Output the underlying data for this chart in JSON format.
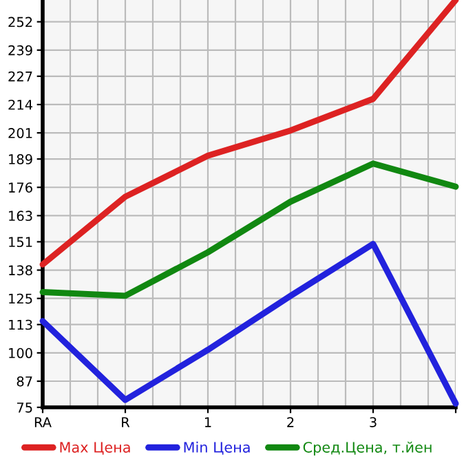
{
  "chart_data": {
    "type": "line",
    "categories": [
      "RA",
      "R",
      "1",
      "2",
      "3",
      null
    ],
    "series": [
      {
        "name": "Max Цена",
        "color": "#dd2222",
        "values": [
          140.6,
          171.7,
          190.5,
          202.1,
          216.6,
          262
        ]
      },
      {
        "name": "Min Цена",
        "color": "#2222dd",
        "values": [
          114.6,
          78.4,
          101.4,
          126.2,
          150,
          76.7
        ]
      },
      {
        "name": "Сред.Цена, т.йен",
        "color": "#118811",
        "values": [
          127.9,
          126.2,
          146.2,
          169.4,
          186.9,
          176.3
        ]
      }
    ],
    "ylim": [
      75,
      262
    ],
    "yticks": [
      75,
      87,
      100,
      113,
      125,
      138,
      151,
      163,
      176,
      189,
      201,
      214,
      227,
      239,
      252
    ],
    "grid": true,
    "legend": "bottom",
    "marker": "none",
    "line_style": "solid"
  }
}
